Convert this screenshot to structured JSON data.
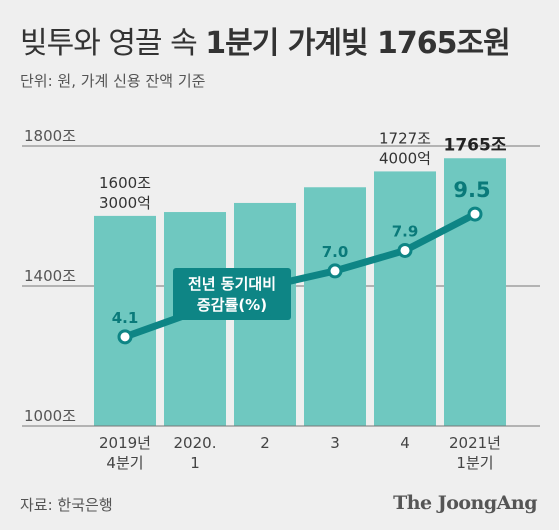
{
  "title": {
    "prefix": "빚투와 영끌 속",
    "main": "1분기 가계빚 1765조원"
  },
  "subtitle": "단위: 원, 가계 신용 잔액 기준",
  "source": "자료: 한국은행",
  "brand": "The JoongAng",
  "colors": {
    "bar": "#6fc8c0",
    "line": "#0e8585",
    "point": "#ffffff",
    "callout": "#0e8585",
    "background": "#efefef"
  },
  "chart_data": {
    "type": "bar",
    "title": "빚투와 영끌 속 1분기 가계빚 1765조원",
    "subtitle": "단위: 원, 가계 신용 잔액 기준",
    "categories": [
      [
        "2019년",
        "4분기"
      ],
      [
        "2020.",
        "1"
      ],
      [
        "2"
      ],
      [
        "3"
      ],
      [
        "4"
      ],
      [
        "2021년",
        "1분기"
      ]
    ],
    "ylim": [
      1000,
      1800
    ],
    "yticks": [
      "1000조",
      "1400조",
      "1800조"
    ],
    "ytick_values": [
      1000,
      1400,
      1800
    ],
    "grid": false,
    "series": [
      {
        "values": [
          1600.3,
          1611.3,
          1637.3,
          1682.1,
          1727.4,
          1765.0
        ],
        "kind": "bar"
      },
      {
        "values": [
          4.1,
          5.2,
          6.3,
          7.0,
          7.9,
          9.5
        ],
        "kind": "line",
        "range": [
          0,
          11
        ]
      }
    ],
    "bar_annotations": [
      {
        "index": 0,
        "lines": [
          "1600조",
          "3000억"
        ]
      },
      {
        "index": 4,
        "lines": [
          "1727조",
          "4000억"
        ]
      },
      {
        "index": 5,
        "lines": [
          "1765조"
        ],
        "bold": true
      }
    ],
    "line_labels": [
      {
        "index": 0,
        "text": "4.1"
      },
      {
        "index": 3,
        "text": "7.0"
      },
      {
        "index": 4,
        "text": "7.9"
      },
      {
        "index": 5,
        "text": "9.5"
      }
    ],
    "callout": {
      "lines": [
        "전년 동기대비",
        "증감률(%)"
      ],
      "index": 2
    }
  }
}
